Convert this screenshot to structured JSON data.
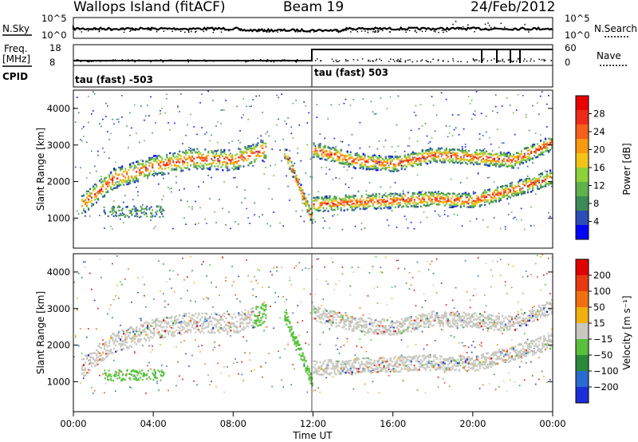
{
  "header": {
    "station": "Wallops Island (fitACF)",
    "beam": "Beam 19",
    "date": "24/Feb/2012"
  },
  "top_panels": {
    "nsky_label": "N.Sky",
    "nsky_ticks": [
      "10^5",
      "10^0"
    ],
    "nsearch_label": "N.Search",
    "nsearch_ticks": [
      "10^5",
      "10^0"
    ],
    "freq_label": "Freq.",
    "freq_unit": "[MHz]",
    "freq_ticks": [
      "18",
      "8"
    ],
    "nave_label": "Nave",
    "nave_ticks": [
      "60",
      "0"
    ],
    "cpid_label": "CPID",
    "cpid_segments": [
      "tau (fast) -503",
      "tau (fast) 503"
    ]
  },
  "chart_data": [
    {
      "type": "heatmap",
      "panel": "power",
      "ylabel": "Slant Range [km]",
      "ylim": [
        180,
        4500
      ],
      "yticks": [
        "1000",
        "2000",
        "3000",
        "4000"
      ],
      "colorbar_label": "Power [dB]",
      "colorbar_ticks": [
        "4",
        "8",
        "12",
        "16",
        "20",
        "24",
        "28"
      ],
      "colorbar_range": [
        0,
        30
      ],
      "colors": [
        "#0000ff",
        "#2a4db6",
        "#3c8a55",
        "#5fb24a",
        "#8ed23a",
        "#f2c419",
        "#f79a0f",
        "#f5601a",
        "#ee2a1a",
        "#e80000"
      ],
      "features": [
        {
          "desc": "main band",
          "x": [
            0.4,
            2,
            4,
            6,
            8,
            9.6
          ],
          "y": [
            1400,
            2100,
            2450,
            2650,
            2600,
            2900
          ]
        },
        {
          "desc": "converging band",
          "x": [
            10.6,
            11.9
          ],
          "y": [
            2800,
            1050
          ]
        },
        {
          "desc": "upper band",
          "x": [
            12,
            14,
            16,
            18,
            20,
            22,
            24
          ],
          "y": [
            2900,
            2600,
            2500,
            2750,
            2700,
            2600,
            3100
          ]
        },
        {
          "desc": "lower band",
          "x": [
            12,
            14,
            16,
            18,
            20,
            22,
            24
          ],
          "y": [
            1400,
            1450,
            1500,
            1550,
            1500,
            1800,
            2150
          ]
        }
      ]
    },
    {
      "type": "heatmap",
      "panel": "velocity",
      "ylabel": "Slant Range [km]",
      "ylim": [
        180,
        4500
      ],
      "yticks": [
        "1000",
        "2000",
        "3000",
        "4000"
      ],
      "colorbar_label": "Velocity [m s⁻¹]",
      "colorbar_ticks": [
        "200",
        "100",
        "50",
        "15",
        "−15",
        "−50",
        "−100",
        "−200"
      ],
      "colors": [
        "#1a2fd8",
        "#2a6bd0",
        "#2a8a3a",
        "#58c03a",
        "#c8c8c0",
        "#f0b010",
        "#f07010",
        "#e83a10",
        "#e00000"
      ],
      "x_axis": {
        "label": "Time UT",
        "ticks": [
          "00:00",
          "04:00",
          "08:00",
          "12:00",
          "16:00",
          "20:00",
          "00:00"
        ],
        "range_hours": [
          0,
          24
        ]
      }
    }
  ]
}
